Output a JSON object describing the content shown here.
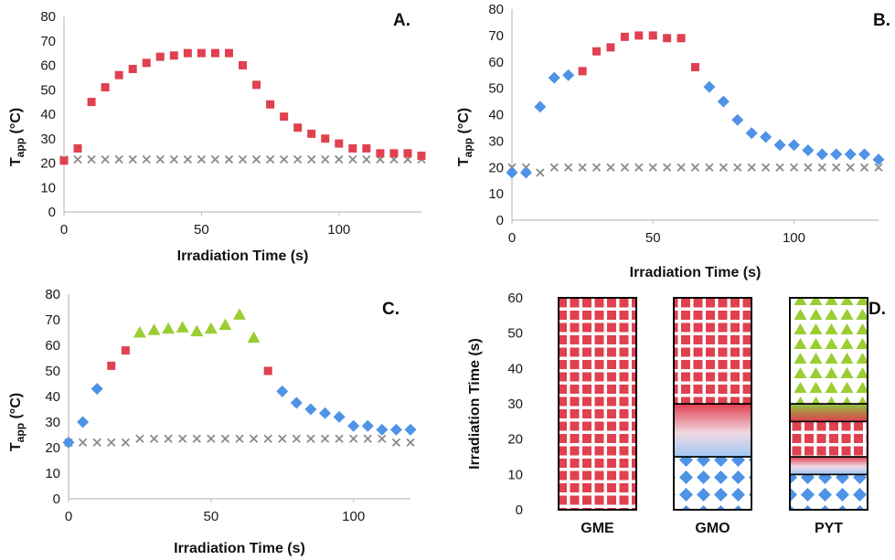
{
  "colors": {
    "square": "#e0404f",
    "diamond": "#4e93e6",
    "triangle": "#9acd32",
    "cross": "#8a8a8a",
    "axis": "#bdbdbd"
  },
  "chart_data": [
    {
      "panel": "A.",
      "type": "scatter",
      "xlabel": "Irradiation Time (s)",
      "ylabel_main": "T",
      "ylabel_sub": "app",
      "ylabel_unit": " (°C)",
      "xlim": [
        0,
        130
      ],
      "ylim": [
        0,
        80
      ],
      "xticks": [
        0,
        50,
        100
      ],
      "yticks": [
        0,
        10,
        20,
        30,
        40,
        50,
        60,
        70,
        80
      ],
      "series": [
        {
          "marker": "square",
          "points": [
            [
              0,
              21
            ],
            [
              5,
              26
            ],
            [
              10,
              45
            ],
            [
              15,
              51
            ],
            [
              20,
              56
            ],
            [
              25,
              58.5
            ],
            [
              30,
              61
            ],
            [
              35,
              63.5
            ],
            [
              40,
              64
            ],
            [
              45,
              65
            ],
            [
              50,
              65
            ],
            [
              55,
              65
            ],
            [
              60,
              65
            ],
            [
              65,
              60
            ],
            [
              70,
              52
            ],
            [
              75,
              44
            ],
            [
              80,
              39
            ],
            [
              85,
              34.5
            ],
            [
              90,
              32
            ],
            [
              95,
              30
            ],
            [
              100,
              28
            ],
            [
              105,
              26
            ],
            [
              110,
              26
            ],
            [
              115,
              24
            ],
            [
              120,
              24
            ],
            [
              125,
              24
            ],
            [
              130,
              23
            ]
          ]
        },
        {
          "marker": "cross",
          "points": [
            [
              0,
              21.5
            ],
            [
              5,
              21.5
            ],
            [
              10,
              21.5
            ],
            [
              15,
              21.5
            ],
            [
              20,
              21.5
            ],
            [
              25,
              21.5
            ],
            [
              30,
              21.5
            ],
            [
              35,
              21.5
            ],
            [
              40,
              21.5
            ],
            [
              45,
              21.5
            ],
            [
              50,
              21.5
            ],
            [
              55,
              21.5
            ],
            [
              60,
              21.5
            ],
            [
              65,
              21.5
            ],
            [
              70,
              21.5
            ],
            [
              75,
              21.5
            ],
            [
              80,
              21.5
            ],
            [
              85,
              21.5
            ],
            [
              90,
              21.5
            ],
            [
              95,
              21.5
            ],
            [
              100,
              21.5
            ],
            [
              105,
              21.5
            ],
            [
              110,
              21.5
            ],
            [
              115,
              21.5
            ],
            [
              120,
              21.5
            ],
            [
              125,
              21.5
            ],
            [
              130,
              21.5
            ]
          ]
        }
      ]
    },
    {
      "panel": "B.",
      "type": "scatter",
      "xlabel": "Irradiation Time (s)",
      "ylabel_main": "T",
      "ylabel_sub": "app",
      "ylabel_unit": " (°C)",
      "xlim": [
        0,
        130
      ],
      "ylim": [
        0,
        80
      ],
      "xticks": [
        0,
        50,
        100
      ],
      "yticks": [
        0,
        10,
        20,
        30,
        40,
        50,
        60,
        70,
        80
      ],
      "series": [
        {
          "marker": "diamond",
          "points": [
            [
              0,
              18
            ],
            [
              5,
              18
            ],
            [
              10,
              43
            ],
            [
              15,
              54
            ],
            [
              20,
              55
            ],
            [
              75,
              45
            ],
            [
              70,
              50.5
            ],
            [
              80,
              38
            ],
            [
              85,
              33
            ],
            [
              90,
              31.5
            ],
            [
              95,
              28.5
            ],
            [
              100,
              28.5
            ],
            [
              105,
              26.5
            ],
            [
              110,
              25
            ],
            [
              115,
              25
            ],
            [
              120,
              25
            ],
            [
              125,
              25
            ],
            [
              130,
              23
            ]
          ]
        },
        {
          "marker": "square",
          "points": [
            [
              25,
              56.5
            ],
            [
              30,
              64
            ],
            [
              35,
              65.5
            ],
            [
              40,
              69.5
            ],
            [
              45,
              70
            ],
            [
              50,
              70
            ],
            [
              55,
              69
            ],
            [
              60,
              69
            ],
            [
              65,
              58
            ]
          ]
        },
        {
          "marker": "cross",
          "points": [
            [
              0,
              20
            ],
            [
              5,
              20
            ],
            [
              10,
              18
            ],
            [
              15,
              20
            ],
            [
              20,
              20
            ],
            [
              25,
              20
            ],
            [
              30,
              20
            ],
            [
              35,
              20
            ],
            [
              40,
              20
            ],
            [
              45,
              20
            ],
            [
              50,
              20
            ],
            [
              55,
              20
            ],
            [
              60,
              20
            ],
            [
              65,
              20
            ],
            [
              70,
              20
            ],
            [
              75,
              20
            ],
            [
              80,
              20
            ],
            [
              85,
              20
            ],
            [
              90,
              20
            ],
            [
              95,
              20
            ],
            [
              100,
              20
            ],
            [
              105,
              20
            ],
            [
              110,
              20
            ],
            [
              115,
              20
            ],
            [
              120,
              20
            ],
            [
              125,
              20
            ],
            [
              130,
              20
            ]
          ]
        }
      ]
    },
    {
      "panel": "C.",
      "type": "scatter",
      "xlabel": "Irradiation Time (s)",
      "ylabel_main": "T",
      "ylabel_sub": "app",
      "ylabel_unit": " (°C)",
      "xlim": [
        0,
        120
      ],
      "ylim": [
        0,
        80
      ],
      "xticks": [
        0,
        50,
        100
      ],
      "yticks": [
        0,
        10,
        20,
        30,
        40,
        50,
        60,
        70,
        80
      ],
      "series": [
        {
          "marker": "diamond",
          "points": [
            [
              0,
              22
            ],
            [
              5,
              30
            ],
            [
              10,
              43
            ],
            [
              75,
              42
            ],
            [
              80,
              37.5
            ],
            [
              85,
              35
            ],
            [
              90,
              33.5
            ],
            [
              95,
              32
            ],
            [
              100,
              28.5
            ],
            [
              105,
              28.5
            ],
            [
              110,
              27
            ],
            [
              115,
              27
            ],
            [
              120,
              27
            ]
          ]
        },
        {
          "marker": "square",
          "points": [
            [
              15,
              52
            ],
            [
              20,
              58
            ],
            [
              70,
              50
            ]
          ]
        },
        {
          "marker": "triangle",
          "points": [
            [
              25,
              65
            ],
            [
              30,
              66
            ],
            [
              35,
              66.5
            ],
            [
              40,
              67
            ],
            [
              45,
              65.5
            ],
            [
              50,
              66.5
            ],
            [
              55,
              68
            ],
            [
              60,
              72
            ],
            [
              65,
              63
            ]
          ]
        },
        {
          "marker": "cross",
          "points": [
            [
              0,
              22
            ],
            [
              5,
              22
            ],
            [
              10,
              22
            ],
            [
              15,
              22
            ],
            [
              20,
              22
            ],
            [
              25,
              23.5
            ],
            [
              30,
              23.5
            ],
            [
              35,
              23.5
            ],
            [
              40,
              23.5
            ],
            [
              45,
              23.5
            ],
            [
              50,
              23.5
            ],
            [
              55,
              23.5
            ],
            [
              60,
              23.5
            ],
            [
              65,
              23.5
            ],
            [
              70,
              23.5
            ],
            [
              75,
              23.5
            ],
            [
              80,
              23.5
            ],
            [
              85,
              23.5
            ],
            [
              90,
              23.5
            ],
            [
              95,
              23.5
            ],
            [
              100,
              23.5
            ],
            [
              105,
              23.5
            ],
            [
              110,
              23.5
            ],
            [
              115,
              22
            ],
            [
              120,
              22
            ]
          ]
        }
      ]
    },
    {
      "panel": "D.",
      "type": "bar",
      "ylabel": "Irradiation Time (s)",
      "ylim": [
        0,
        60
      ],
      "yticks": [
        0,
        10,
        20,
        30,
        40,
        50,
        60
      ],
      "categories": [
        "GME",
        "GMO",
        "PYT"
      ],
      "segments": [
        [
          {
            "from": 0,
            "to": 60,
            "pattern": "square"
          }
        ],
        [
          {
            "from": 0,
            "to": 15,
            "pattern": "diamond"
          },
          {
            "from": 15,
            "to": 30,
            "pattern": "gradient"
          },
          {
            "from": 30,
            "to": 60,
            "pattern": "square"
          }
        ],
        [
          {
            "from": 0,
            "to": 10,
            "pattern": "diamond"
          },
          {
            "from": 10,
            "to": 15,
            "pattern": "gradient"
          },
          {
            "from": 15,
            "to": 25,
            "pattern": "square"
          },
          {
            "from": 25,
            "to": 30,
            "pattern": "gradient-green"
          },
          {
            "from": 30,
            "to": 60,
            "pattern": "triangle"
          }
        ]
      ]
    }
  ]
}
